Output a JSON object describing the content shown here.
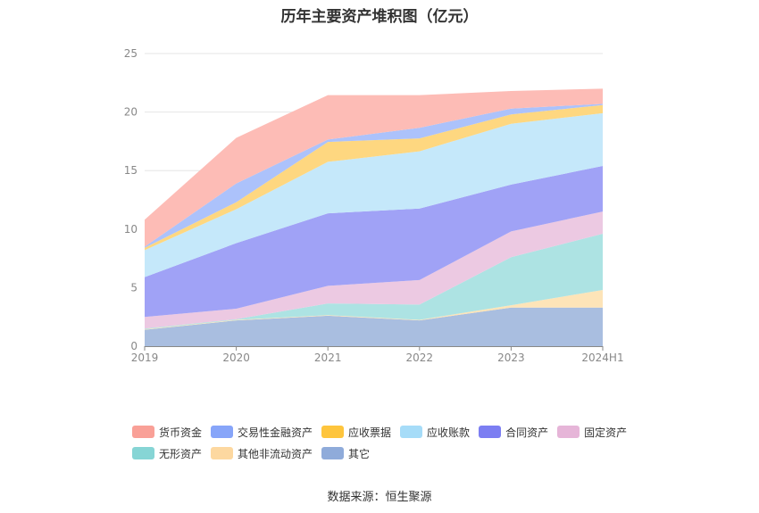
{
  "title": "历年主要资产堆积图（亿元）",
  "source": "数据来源：恒生聚源",
  "chart_data": {
    "type": "area",
    "stacked": true,
    "title": "历年主要资产堆积图（亿元）",
    "categories": [
      "2019",
      "2020",
      "2021",
      "2022",
      "2023",
      "2024H1"
    ],
    "ylim": [
      0,
      25
    ],
    "yticks": [
      0,
      5,
      10,
      15,
      20,
      25
    ],
    "grid": true,
    "legend_position": "bottom",
    "series": [
      {
        "name": "其它",
        "color": "#a9bee0",
        "values": [
          1.4,
          2.2,
          2.6,
          2.2,
          3.3,
          3.3
        ]
      },
      {
        "name": "其他非流动资产",
        "color": "#fde4b8",
        "values": [
          0.05,
          0.05,
          0.05,
          0.05,
          0.2,
          1.5
        ]
      },
      {
        "name": "无形资产",
        "color": "#ade3e3",
        "values": [
          0.05,
          0.05,
          1.0,
          1.3,
          4.1,
          4.8
        ]
      },
      {
        "name": "固定资产",
        "color": "#ecc9e2",
        "values": [
          1.0,
          0.9,
          1.5,
          2.1,
          2.2,
          1.9
        ]
      },
      {
        "name": "合同资产",
        "color": "#a0a2f6",
        "values": [
          3.4,
          5.6,
          6.2,
          6.1,
          4.0,
          3.9
        ]
      },
      {
        "name": "应收账款",
        "color": "#c5e8fa",
        "values": [
          2.3,
          2.9,
          4.4,
          4.9,
          5.2,
          4.5
        ]
      },
      {
        "name": "应收票据",
        "color": "#fed780",
        "values": [
          0.2,
          0.6,
          1.7,
          1.1,
          0.8,
          0.7
        ]
      },
      {
        "name": "交易性金融资产",
        "color": "#acc2fb",
        "values": [
          0.1,
          1.6,
          0.2,
          0.9,
          0.5,
          0.1
        ]
      },
      {
        "name": "货币资金",
        "color": "#fdbcb6",
        "values": [
          2.3,
          3.9,
          3.8,
          2.8,
          1.5,
          1.3
        ]
      }
    ]
  },
  "legend": [
    {
      "label": "货币资金",
      "color": "#f9a097"
    },
    {
      "label": "交易性金融资产",
      "color": "#87a5f9"
    },
    {
      "label": "应收票据",
      "color": "#fec53d"
    },
    {
      "label": "应收账款",
      "color": "#a6dcf8"
    },
    {
      "label": "合同资产",
      "color": "#7c7ef2"
    },
    {
      "label": "固定资产",
      "color": "#e6b5d8"
    },
    {
      "label": "无形资产",
      "color": "#86d5d5"
    },
    {
      "label": "其他非流动资产",
      "color": "#fdd8a0"
    },
    {
      "label": "其它",
      "color": "#8fabda"
    }
  ]
}
